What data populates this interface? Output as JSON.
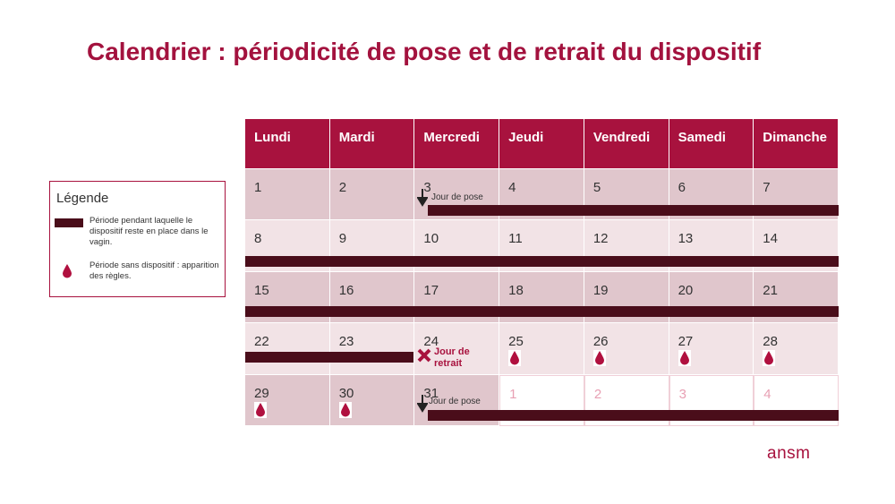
{
  "title": "Calendrier : périodicité de pose et de retrait du dispositif",
  "legend": {
    "title": "Légende",
    "items": [
      "Période pendant laquelle le dispositif reste en place dans le vagin.",
      "Période sans dispositif : apparition des règles."
    ]
  },
  "calendar": {
    "days": [
      "Lundi",
      "Mardi",
      "Mercredi",
      "Jeudi",
      "Vendredi",
      "Samedi",
      "Dimanche"
    ],
    "weeks": [
      [
        1,
        2,
        3,
        4,
        5,
        6,
        7
      ],
      [
        8,
        9,
        10,
        11,
        12,
        13,
        14
      ],
      [
        15,
        16,
        17,
        18,
        19,
        20,
        21
      ],
      [
        22,
        23,
        24,
        25,
        26,
        27,
        28
      ],
      [
        29,
        30,
        31,
        1,
        2,
        3,
        4
      ]
    ]
  },
  "annotations": [
    "Jour de pose",
    "Jour de retrait",
    "Jour de pose"
  ],
  "logo": "ansm"
}
